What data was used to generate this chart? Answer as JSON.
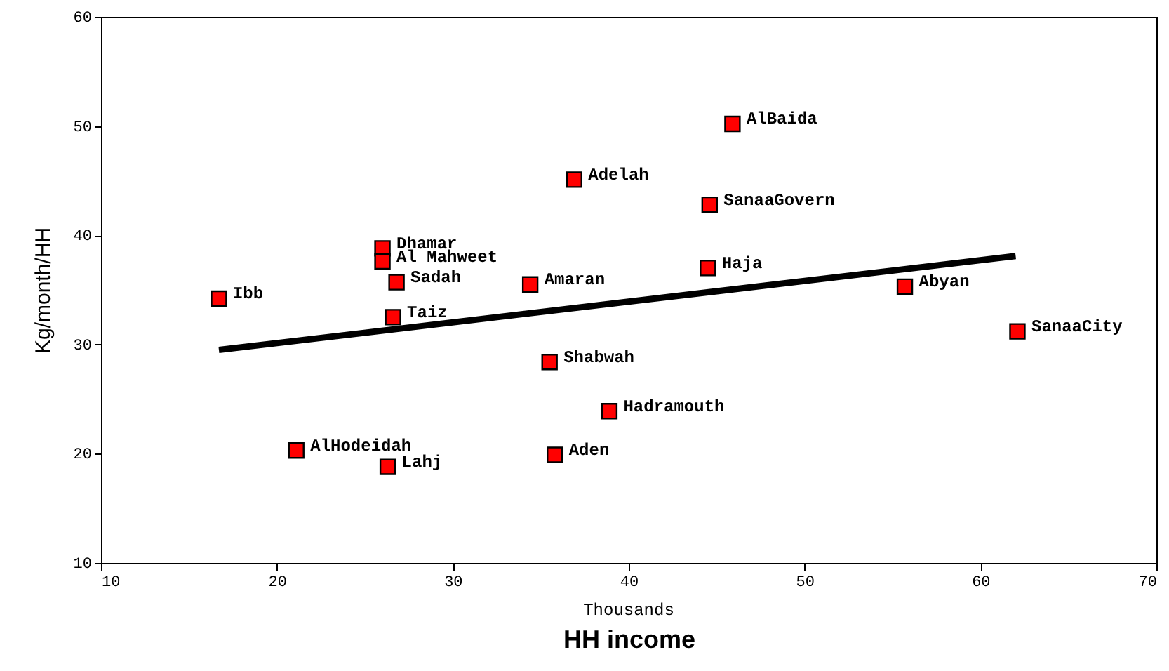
{
  "chart_data": {
    "type": "scatter",
    "xlabel": "HH income",
    "ylabel": "Kg/month/HH",
    "xlim": [
      10,
      70
    ],
    "xticks": [
      10,
      20,
      30,
      40,
      50,
      60,
      70
    ],
    "ylim": [
      10,
      60
    ],
    "yticks": [
      10,
      20,
      30,
      40,
      50,
      60
    ],
    "grid": false,
    "marker": "square",
    "series": [
      {
        "color": "#ff0000",
        "x": [
          16.7,
          21.1,
          26.3,
          26.0,
          26.0,
          26.8,
          26.6,
          34.4,
          35.5,
          35.8,
          36.9,
          38.9,
          44.5,
          44.6,
          45.9,
          55.7,
          62.1
        ],
        "values": [
          34.2,
          20.3,
          18.8,
          38.8,
          37.6,
          35.7,
          32.5,
          35.5,
          28.4,
          19.9,
          45.1,
          23.9,
          37.0,
          42.8,
          50.2,
          35.3,
          31.2
        ]
      },
      {
        "type": "line",
        "color": "#000000",
        "marker": "none",
        "x": [
          16.7,
          62.0
        ],
        "values": [
          29.5,
          38.1
        ]
      }
    ],
    "annotations": [
      "Thousands",
      {
        "text": "Ibb",
        "x": 16.7,
        "y": 34.2
      },
      {
        "text": "AlHodeidah",
        "x": 21.1,
        "y": 20.3
      },
      {
        "text": "Lahj",
        "x": 26.3,
        "y": 18.8
      },
      {
        "text": "Dhamar",
        "x": 26.0,
        "y": 38.8
      },
      {
        "text": "Al Mahweet",
        "x": 26.0,
        "y": 37.6
      },
      {
        "text": "Sadah",
        "x": 26.8,
        "y": 35.7
      },
      {
        "text": "Taiz",
        "x": 26.6,
        "y": 32.5
      },
      {
        "text": "Amaran",
        "x": 34.4,
        "y": 35.5
      },
      {
        "text": "Shabwah",
        "x": 35.5,
        "y": 28.4
      },
      {
        "text": "Aden",
        "x": 35.8,
        "y": 19.9
      },
      {
        "text": "Adelah",
        "x": 36.9,
        "y": 45.1
      },
      {
        "text": "Hadramouth",
        "x": 38.9,
        "y": 23.9
      },
      {
        "text": "Haja",
        "x": 44.5,
        "y": 37.0
      },
      {
        "text": "SanaaGovern",
        "x": 44.6,
        "y": 42.8
      },
      {
        "text": "AlBaida",
        "x": 45.9,
        "y": 50.2
      },
      {
        "text": "Abyan",
        "x": 55.7,
        "y": 35.3
      },
      {
        "text": "SanaaCity",
        "x": 62.1,
        "y": 31.2
      }
    ]
  }
}
